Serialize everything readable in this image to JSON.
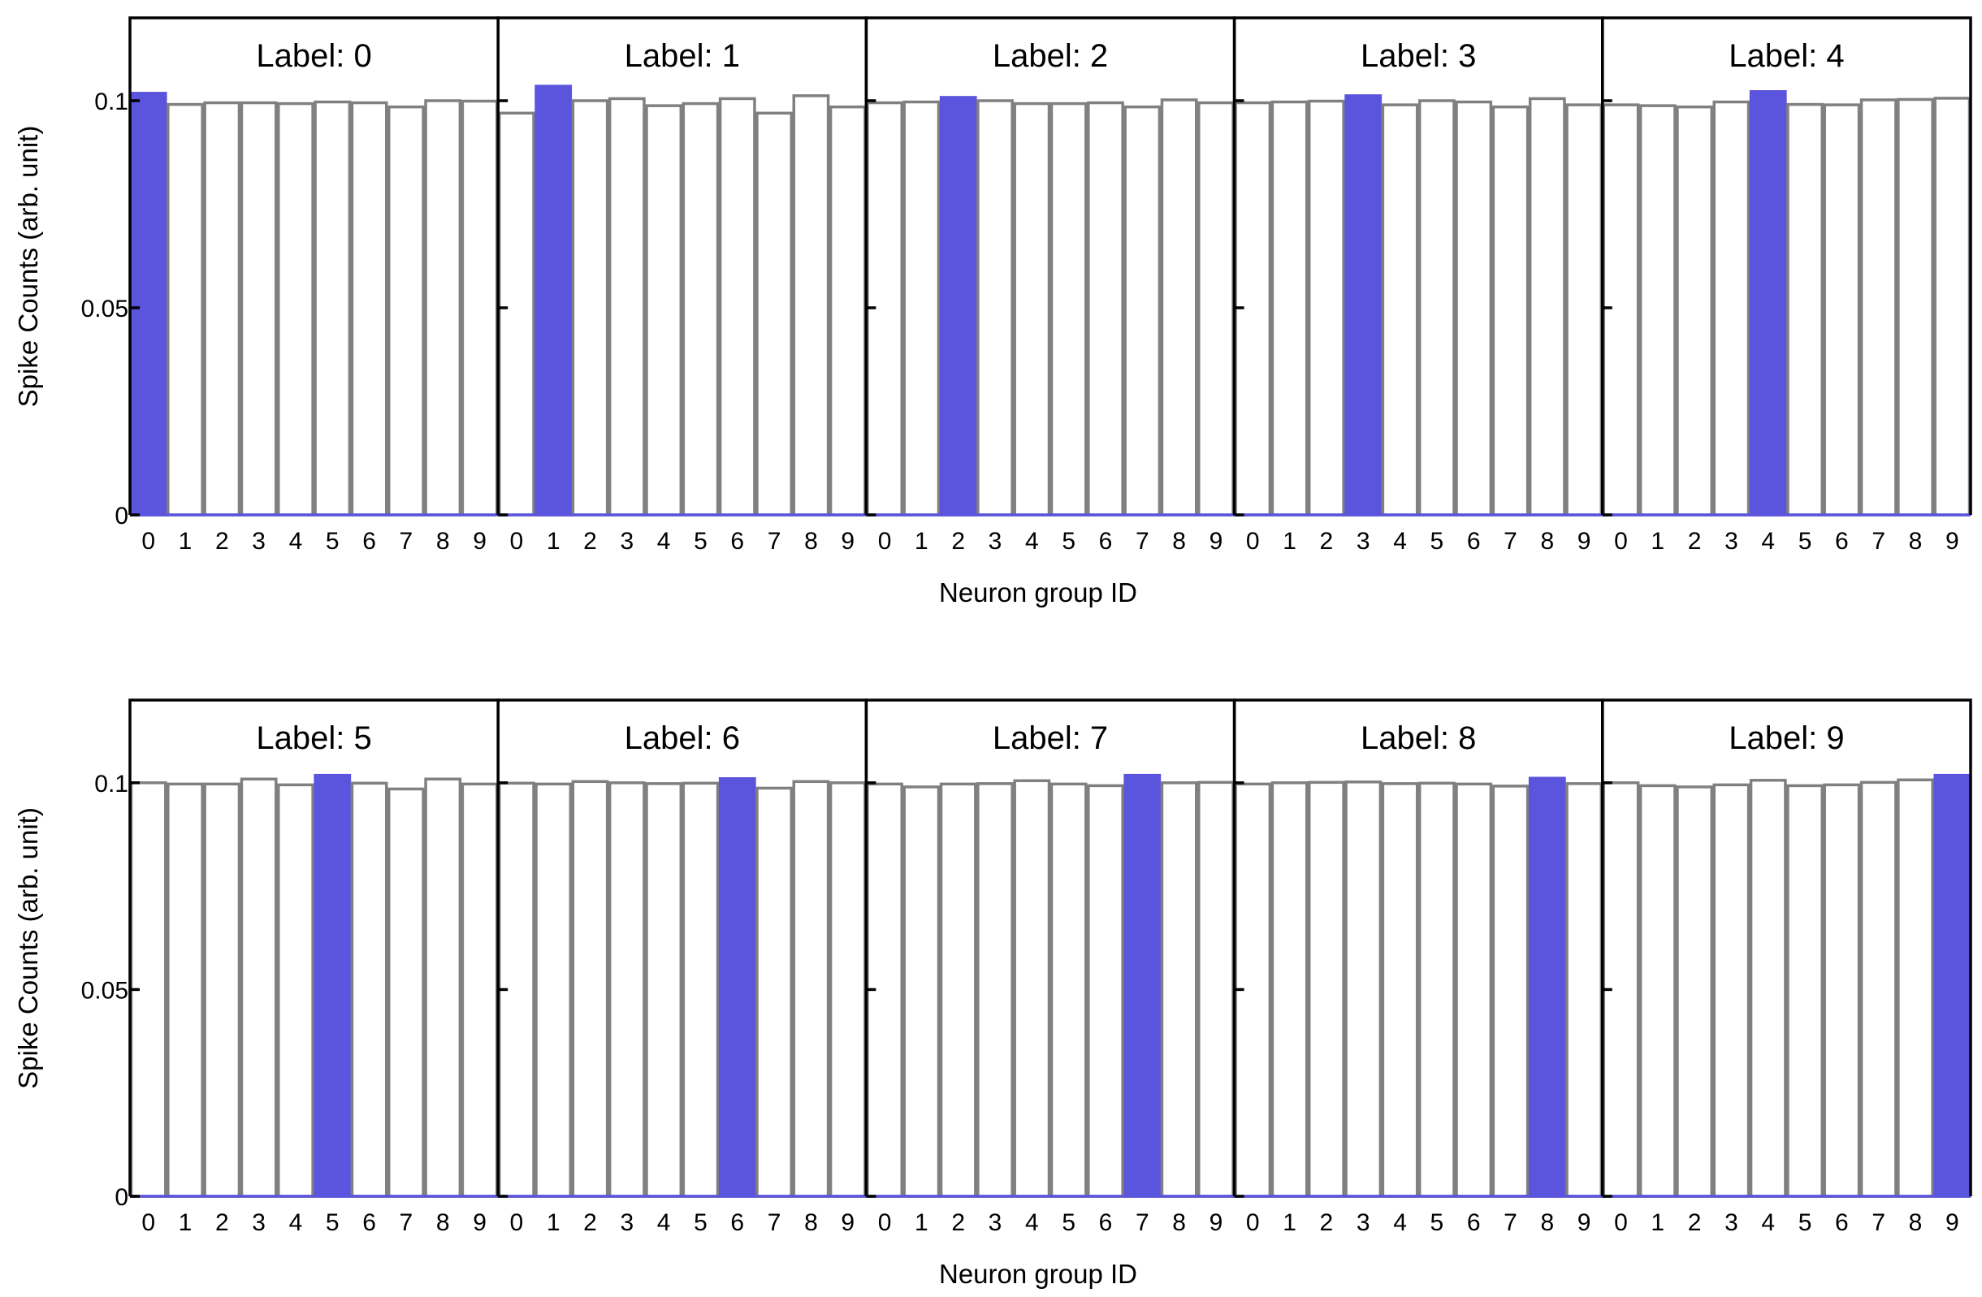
{
  "chart_data": {
    "type": "bar",
    "xlabel": "Neuron group ID",
    "ylabel": "Spike Counts (arb. unit)",
    "ylim": [
      0,
      0.12
    ],
    "yticks": [
      0,
      0.05,
      0.1
    ],
    "ytick_labels": [
      "0",
      "0.05",
      "0.1"
    ],
    "categories": [
      "0",
      "1",
      "2",
      "3",
      "4",
      "5",
      "6",
      "7",
      "8",
      "9"
    ],
    "colors": {
      "highlight": "#5b54dc",
      "bar_edge": "#808080",
      "bar_fill": "#ffffff",
      "frame": "#000000"
    },
    "rows": [
      {
        "panels": [
          {
            "title": "Label: 0",
            "highlight": 0,
            "values": [
              0.1018,
              0.0991,
              0.0995,
              0.0995,
              0.0993,
              0.0997,
              0.0995,
              0.0985,
              0.1,
              0.0999
            ]
          },
          {
            "title": "Label: 1",
            "highlight": 1,
            "values": [
              0.097,
              0.1035,
              0.1,
              0.1005,
              0.0988,
              0.0993,
              0.1005,
              0.097,
              0.1012,
              0.0985
            ]
          },
          {
            "title": "Label: 2",
            "highlight": 2,
            "values": [
              0.0995,
              0.0997,
              0.1008,
              0.1,
              0.0993,
              0.0993,
              0.0995,
              0.0985,
              0.1002,
              0.0995
            ]
          },
          {
            "title": "Label: 3",
            "highlight": 3,
            "values": [
              0.0995,
              0.0997,
              0.0999,
              0.1012,
              0.099,
              0.1,
              0.0997,
              0.0985,
              0.1005,
              0.099
            ]
          },
          {
            "title": "Label: 4",
            "highlight": 4,
            "values": [
              0.099,
              0.0988,
              0.0985,
              0.0997,
              0.1022,
              0.0991,
              0.099,
              0.1002,
              0.1003,
              0.1006
            ]
          }
        ]
      },
      {
        "panels": [
          {
            "title": "Label: 5",
            "highlight": 5,
            "values": [
              0.1,
              0.0997,
              0.0997,
              0.1009,
              0.0995,
              0.1018,
              0.0999,
              0.0985,
              0.1009,
              0.0997
            ]
          },
          {
            "title": "Label: 6",
            "highlight": 6,
            "values": [
              0.0999,
              0.0997,
              0.1003,
              0.1,
              0.0998,
              0.0999,
              0.101,
              0.0987,
              0.1003,
              0.1
            ]
          },
          {
            "title": "Label: 7",
            "highlight": 7,
            "values": [
              0.0997,
              0.099,
              0.0997,
              0.0998,
              0.1005,
              0.0997,
              0.0993,
              0.1018,
              0.1,
              0.1001
            ]
          },
          {
            "title": "Label: 8",
            "highlight": 8,
            "values": [
              0.0997,
              0.1,
              0.1001,
              0.1002,
              0.0998,
              0.0999,
              0.0997,
              0.0992,
              0.1011,
              0.0998
            ]
          },
          {
            "title": "Label: 9",
            "highlight": 9,
            "values": [
              0.1,
              0.0993,
              0.099,
              0.0995,
              0.1006,
              0.0993,
              0.0995,
              0.1001,
              0.1007,
              0.1018
            ]
          }
        ]
      }
    ]
  }
}
